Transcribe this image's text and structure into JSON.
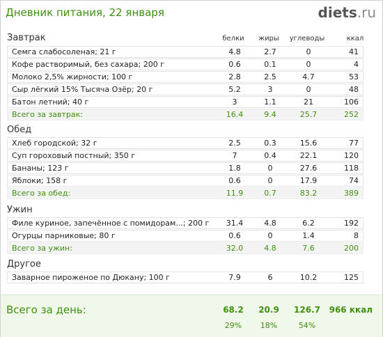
{
  "header": {
    "title": "Дневник питания, 22 января",
    "logo_main": "diets",
    "logo_suffix": ".ru"
  },
  "columns": {
    "protein": "белки",
    "fat": "жиры",
    "carbs": "углеводы",
    "kcal": "ккал"
  },
  "sections": {
    "breakfast": {
      "title": "Завтрак",
      "items": [
        {
          "name": "Семга слабосоленая; 21 г",
          "protein": "4.8",
          "fat": "2.7",
          "carbs": "0",
          "kcal": "41"
        },
        {
          "name": "Кофе растворимый, без сахара; 200 г",
          "protein": "0.6",
          "fat": "0.1",
          "carbs": "0",
          "kcal": "4"
        },
        {
          "name": "Молоко 2,5% жирности; 100 г",
          "protein": "2.8",
          "fat": "2.5",
          "carbs": "4.7",
          "kcal": "53"
        },
        {
          "name": "Сыр лёгкий 15% Тысяча Озёр; 20 г",
          "protein": "5.2",
          "fat": "3",
          "carbs": "0",
          "kcal": "48"
        },
        {
          "name": "Батон летний; 40 г",
          "protein": "3",
          "fat": "1.1",
          "carbs": "21",
          "kcal": "106"
        }
      ],
      "total": {
        "label": "Всего за завтрак:",
        "protein": "16.4",
        "fat": "9.4",
        "carbs": "25.7",
        "kcal": "252"
      }
    },
    "lunch": {
      "title": "Обед",
      "items": [
        {
          "name": "Хлеб городской; 32 г",
          "protein": "2.5",
          "fat": "0.3",
          "carbs": "15.6",
          "kcal": "77"
        },
        {
          "name": "Суп гороховый постный; 350 г",
          "protein": "7",
          "fat": "0.4",
          "carbs": "22.1",
          "kcal": "120"
        },
        {
          "name": "Бананы; 123 г",
          "protein": "1.8",
          "fat": "0",
          "carbs": "27.6",
          "kcal": "118"
        },
        {
          "name": "Яблоки; 158 г",
          "protein": "0.6",
          "fat": "0",
          "carbs": "17.9",
          "kcal": "74"
        }
      ],
      "total": {
        "label": "Всего за обед:",
        "protein": "11.9",
        "fat": "0.7",
        "carbs": "83.2",
        "kcal": "389"
      }
    },
    "dinner": {
      "title": "Ужин",
      "items": [
        {
          "name": "Филе куриное, запечённое с помидорам...; 200 г",
          "protein": "31.4",
          "fat": "4.8",
          "carbs": "6.2",
          "kcal": "192"
        },
        {
          "name": "Огурцы парниковые; 80 г",
          "protein": "0.6",
          "fat": "0",
          "carbs": "1.4",
          "kcal": "8"
        }
      ],
      "total": {
        "label": "Всего за ужин:",
        "protein": "32.0",
        "fat": "4.8",
        "carbs": "7.6",
        "kcal": "200"
      }
    },
    "other": {
      "title": "Другое",
      "items": [
        {
          "name": "Заварное пироженое по Дюкану; 100 г",
          "protein": "7.9",
          "fat": "6",
          "carbs": "10.2",
          "kcal": "125"
        }
      ]
    }
  },
  "day_total": {
    "label": "Всего за день:",
    "protein": "68.2",
    "fat": "20.9",
    "carbs": "126.7",
    "kcal": "966 ккал",
    "protein_pct": "29%",
    "fat_pct": "18%",
    "carbs_pct": "54%"
  }
}
